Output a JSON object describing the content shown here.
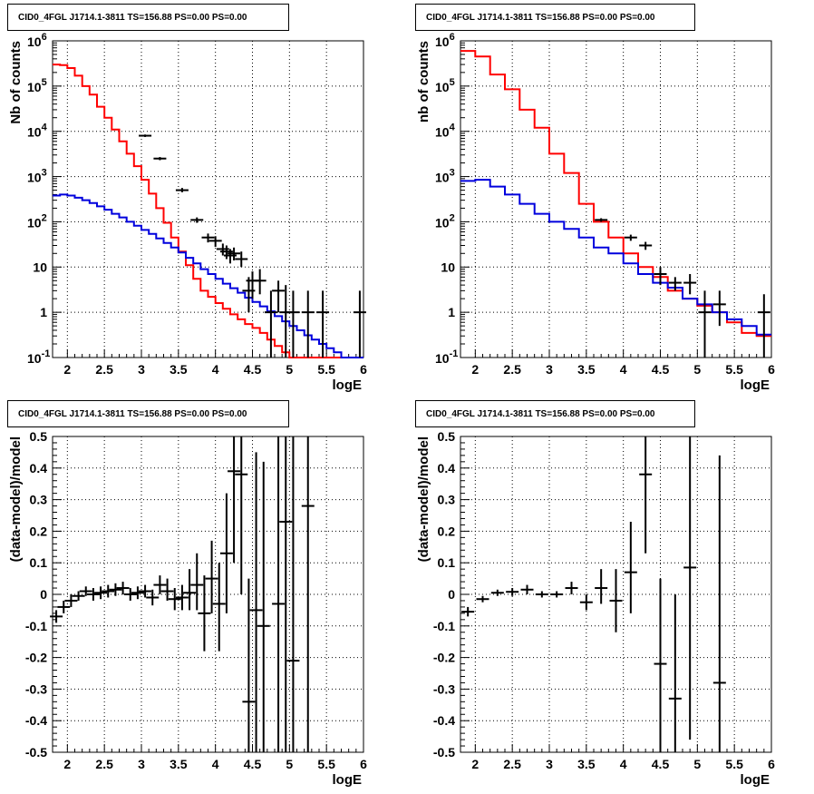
{
  "chart_data": [
    {
      "type": "line",
      "title": "CID0_4FGL J1714.1-3811 TS=156.88 PS=0.00 PS=0.00",
      "xlabel": "logE",
      "ylabel": "Nb of counts",
      "xlim": [
        1.8,
        6.0
      ],
      "ylim": [
        0.1,
        1000000
      ],
      "yscale": "log",
      "grid": true,
      "x_ticks": [
        "2",
        "2.5",
        "3",
        "3.5",
        "4",
        "4.5",
        "5",
        "5.5",
        "6"
      ],
      "y_ticks": [
        "10^-1",
        "1",
        "10",
        "10^2",
        "10^3",
        "10^4",
        "10^5",
        "10^6"
      ],
      "series": [
        {
          "color": "#ff0000",
          "style": "step",
          "bin_edges": [
            1.8,
            1.9,
            2.0,
            2.1,
            2.2,
            2.3,
            2.4,
            2.5,
            2.6,
            2.7,
            2.8,
            2.9,
            3.0,
            3.1,
            3.2,
            3.3,
            3.4,
            3.5,
            3.6,
            3.7,
            3.8,
            3.9,
            4.0,
            4.1,
            4.2,
            4.3,
            4.4,
            4.5,
            4.6,
            4.7,
            4.8,
            4.9,
            5.0,
            5.1,
            5.2,
            5.3,
            5.4,
            5.5,
            5.6,
            5.7,
            5.8,
            5.9,
            6.0
          ],
          "values": [
            300000,
            290000,
            250000,
            170000,
            100000,
            65000,
            35000,
            20000,
            11000,
            6000,
            3200,
            1700,
            850,
            420,
            200,
            95,
            45,
            22,
            11,
            5.5,
            3,
            2.2,
            1.6,
            1.2,
            0.9,
            0.7,
            0.55,
            0.45,
            0.35,
            0.25,
            0.18,
            0.13,
            0.1,
            0.08,
            0.065,
            0.055,
            0.045,
            0.035,
            0.028,
            0.022,
            0.018,
            0.014
          ]
        },
        {
          "color": "#0000dd",
          "style": "step",
          "bin_edges": [
            1.8,
            1.9,
            2.0,
            2.1,
            2.2,
            2.3,
            2.4,
            2.5,
            2.6,
            2.7,
            2.8,
            2.9,
            3.0,
            3.1,
            3.2,
            3.3,
            3.4,
            3.5,
            3.6,
            3.7,
            3.8,
            3.9,
            4.0,
            4.1,
            4.2,
            4.3,
            4.4,
            4.5,
            4.6,
            4.7,
            4.8,
            4.9,
            5.0,
            5.1,
            5.2,
            5.3,
            5.4,
            5.5,
            5.6,
            5.7,
            5.8,
            5.9,
            6.0
          ],
          "values": [
            380,
            400,
            380,
            340,
            300,
            260,
            220,
            185,
            150,
            125,
            100,
            82,
            66,
            54,
            43,
            34,
            27,
            21,
            16,
            12,
            9,
            7,
            5.5,
            4.3,
            3.4,
            2.7,
            2.1,
            1.7,
            1.35,
            1.05,
            0.82,
            0.63,
            0.5,
            0.4,
            0.31,
            0.25,
            0.2,
            0.16,
            0.13,
            0.1,
            0.08,
            0.065
          ]
        }
      ],
      "points": [
        {
          "x": 3.05,
          "y": 8000,
          "ylo": 7500,
          "yhi": 8500
        },
        {
          "x": 3.25,
          "y": 2500,
          "ylo": 2300,
          "yhi": 2700
        },
        {
          "x": 3.55,
          "y": 500,
          "ylo": 450,
          "yhi": 560
        },
        {
          "x": 3.75,
          "y": 110,
          "ylo": 95,
          "yhi": 125
        },
        {
          "x": 3.9,
          "y": 45,
          "ylo": 35,
          "yhi": 55
        },
        {
          "x": 4.0,
          "y": 38,
          "ylo": 28,
          "yhi": 48
        },
        {
          "x": 4.1,
          "y": 25,
          "ylo": 18,
          "yhi": 33
        },
        {
          "x": 4.15,
          "y": 22,
          "ylo": 15,
          "yhi": 30
        },
        {
          "x": 4.2,
          "y": 18,
          "ylo": 12,
          "yhi": 25
        },
        {
          "x": 4.25,
          "y": 20,
          "ylo": 14,
          "yhi": 27
        },
        {
          "x": 4.35,
          "y": 15,
          "ylo": 10,
          "yhi": 22
        },
        {
          "x": 4.45,
          "y": 3,
          "ylo": 1,
          "yhi": 6
        },
        {
          "x": 4.5,
          "y": 5,
          "ylo": 2,
          "yhi": 8
        },
        {
          "x": 4.6,
          "y": 5,
          "ylo": 2.5,
          "yhi": 9
        },
        {
          "x": 4.75,
          "y": 1,
          "ylo": 0.1,
          "yhi": 3
        },
        {
          "x": 4.85,
          "y": 3,
          "ylo": 1,
          "yhi": 5
        },
        {
          "x": 4.95,
          "y": 1,
          "ylo": 0.1,
          "yhi": 4
        },
        {
          "x": 5.05,
          "y": 1,
          "ylo": 0.1,
          "yhi": 3
        },
        {
          "x": 5.25,
          "y": 1,
          "ylo": 0.1,
          "yhi": 3
        },
        {
          "x": 5.45,
          "y": 1,
          "ylo": 0.1,
          "yhi": 3
        },
        {
          "x": 5.95,
          "y": 1,
          "ylo": 0.1,
          "yhi": 3
        }
      ]
    },
    {
      "type": "line",
      "title": "CID0_4FGL J1714.1-3811 TS=156.88 PS=0.00 PS=0.00",
      "xlabel": "logE",
      "ylabel": "nb of counts",
      "xlim": [
        1.8,
        6.0
      ],
      "ylim": [
        0.1,
        1000000
      ],
      "yscale": "log",
      "grid": true,
      "x_ticks": [
        "2",
        "2.5",
        "3",
        "3.5",
        "4",
        "4.5",
        "5",
        "5.5",
        "6"
      ],
      "y_ticks": [
        "10^-1",
        "1",
        "10",
        "10^2",
        "10^3",
        "10^4",
        "10^5",
        "10^6"
      ],
      "series": [
        {
          "color": "#ff0000",
          "style": "step",
          "bin_edges": [
            1.8,
            2.0,
            2.2,
            2.4,
            2.6,
            2.8,
            3.0,
            3.2,
            3.4,
            3.6,
            3.8,
            4.0,
            4.2,
            4.4,
            4.6,
            4.8,
            5.0,
            5.2,
            5.4,
            5.6,
            5.8,
            6.0
          ],
          "values": [
            600000,
            450000,
            180000,
            85000,
            30000,
            12000,
            3200,
            1200,
            250,
            100,
            45,
            20,
            10,
            6,
            3,
            2,
            1.4,
            1,
            0.6,
            0.35,
            0.3
          ]
        },
        {
          "color": "#0000dd",
          "style": "step",
          "bin_edges": [
            1.8,
            2.0,
            2.2,
            2.4,
            2.6,
            2.8,
            3.0,
            3.2,
            3.4,
            3.6,
            3.8,
            4.0,
            4.2,
            4.4,
            4.6,
            4.8,
            5.0,
            5.2,
            5.4,
            5.6,
            5.8,
            6.0
          ],
          "values": [
            800,
            850,
            600,
            400,
            250,
            150,
            100,
            70,
            45,
            27,
            20,
            12,
            7,
            4.5,
            3.5,
            2,
            1.5,
            1,
            0.7,
            0.5,
            0.32
          ]
        }
      ],
      "points": [
        {
          "x": 3.7,
          "y": 110,
          "ylo": 100,
          "yhi": 120
        },
        {
          "x": 4.1,
          "y": 45,
          "ylo": 38,
          "yhi": 52
        },
        {
          "x": 4.3,
          "y": 30,
          "ylo": 24,
          "yhi": 36
        },
        {
          "x": 4.5,
          "y": 7,
          "ylo": 4,
          "yhi": 10
        },
        {
          "x": 4.7,
          "y": 4.5,
          "ylo": 3,
          "yhi": 6
        },
        {
          "x": 4.9,
          "y": 4.5,
          "ylo": 2.5,
          "yhi": 7
        },
        {
          "x": 5.1,
          "y": 1,
          "ylo": 0.1,
          "yhi": 3
        },
        {
          "x": 5.3,
          "y": 1.5,
          "ylo": 0.5,
          "yhi": 3
        },
        {
          "x": 5.9,
          "y": 1,
          "ylo": 0.1,
          "yhi": 2.5
        }
      ]
    },
    {
      "type": "scatter",
      "title": "CID0_4FGL J1714.1-3811 TS=156.88 PS=0.00 PS=0.00",
      "xlabel": "logE",
      "ylabel": "(data-model)/model",
      "xlim": [
        1.8,
        6.0
      ],
      "ylim": [
        -0.5,
        0.5
      ],
      "grid": true,
      "x_ticks": [
        "2",
        "2.5",
        "3",
        "3.5",
        "4",
        "4.5",
        "5",
        "5.5",
        "6"
      ],
      "y_ticks": [
        "-0.5",
        "-0.4",
        "-0.3",
        "-0.2",
        "-0.1",
        "0",
        "0.1",
        "0.2",
        "0.3",
        "0.4",
        "0.5"
      ],
      "points": [
        {
          "x": 1.85,
          "y": -0.07,
          "ylo": -0.09,
          "yhi": -0.05
        },
        {
          "x": 1.95,
          "y": -0.04,
          "ylo": -0.06,
          "yhi": -0.02
        },
        {
          "x": 2.05,
          "y": -0.02,
          "ylo": -0.04,
          "yhi": 0.0
        },
        {
          "x": 2.15,
          "y": -0.005,
          "ylo": -0.02,
          "yhi": 0.01
        },
        {
          "x": 2.25,
          "y": 0.01,
          "ylo": -0.005,
          "yhi": 0.025
        },
        {
          "x": 2.35,
          "y": 0.0,
          "ylo": -0.02,
          "yhi": 0.02
        },
        {
          "x": 2.45,
          "y": 0.005,
          "ylo": -0.015,
          "yhi": 0.025
        },
        {
          "x": 2.55,
          "y": 0.01,
          "ylo": -0.01,
          "yhi": 0.03
        },
        {
          "x": 2.65,
          "y": 0.015,
          "ylo": -0.005,
          "yhi": 0.035
        },
        {
          "x": 2.75,
          "y": 0.02,
          "ylo": 0.0,
          "yhi": 0.04
        },
        {
          "x": 2.85,
          "y": 0.0,
          "ylo": -0.02,
          "yhi": 0.02
        },
        {
          "x": 2.95,
          "y": 0.005,
          "ylo": -0.015,
          "yhi": 0.025
        },
        {
          "x": 3.05,
          "y": 0.01,
          "ylo": -0.01,
          "yhi": 0.03
        },
        {
          "x": 3.15,
          "y": -0.01,
          "ylo": -0.035,
          "yhi": 0.015
        },
        {
          "x": 3.25,
          "y": 0.03,
          "ylo": 0.0,
          "yhi": 0.06
        },
        {
          "x": 3.35,
          "y": 0.01,
          "ylo": -0.02,
          "yhi": 0.05
        },
        {
          "x": 3.45,
          "y": -0.015,
          "ylo": -0.05,
          "yhi": 0.02
        },
        {
          "x": 3.55,
          "y": -0.01,
          "ylo": -0.05,
          "yhi": 0.03
        },
        {
          "x": 3.65,
          "y": 0.005,
          "ylo": -0.05,
          "yhi": 0.08
        },
        {
          "x": 3.75,
          "y": 0.03,
          "ylo": -0.05,
          "yhi": 0.13
        },
        {
          "x": 3.85,
          "y": -0.06,
          "ylo": -0.18,
          "yhi": 0.06
        },
        {
          "x": 3.95,
          "y": 0.05,
          "ylo": -0.06,
          "yhi": 0.17
        },
        {
          "x": 4.05,
          "y": -0.03,
          "ylo": -0.18,
          "yhi": 0.1
        },
        {
          "x": 4.15,
          "y": 0.13,
          "ylo": -0.06,
          "yhi": 0.32
        },
        {
          "x": 4.25,
          "y": 0.39,
          "ylo": 0.1,
          "yhi": 0.5
        },
        {
          "x": 4.35,
          "y": 0.38,
          "ylo": 0.0,
          "yhi": 0.5
        },
        {
          "x": 4.45,
          "y": -0.34,
          "ylo": -0.5,
          "yhi": 0.05
        },
        {
          "x": 4.55,
          "y": -0.05,
          "ylo": -0.5,
          "yhi": 0.45
        },
        {
          "x": 4.65,
          "y": -0.1,
          "ylo": -0.5,
          "yhi": 0.42
        },
        {
          "x": 4.85,
          "y": -0.03,
          "ylo": -0.5,
          "yhi": 0.5
        },
        {
          "x": 4.95,
          "y": 0.23,
          "ylo": -0.5,
          "yhi": 0.5
        },
        {
          "x": 5.05,
          "y": -0.21,
          "ylo": -0.5,
          "yhi": 0.5
        },
        {
          "x": 5.25,
          "y": 0.28,
          "ylo": -0.5,
          "yhi": 0.5
        }
      ]
    },
    {
      "type": "scatter",
      "title": "CID0_4FGL J1714.1-3811 TS=156.88 PS=0.00 PS=0.00",
      "xlabel": "logE",
      "ylabel": "(data-model)/model",
      "xlim": [
        1.8,
        6.0
      ],
      "ylim": [
        -0.5,
        0.5
      ],
      "grid": true,
      "x_ticks": [
        "2",
        "2.5",
        "3",
        "3.5",
        "4",
        "4.5",
        "5",
        "5.5",
        "6"
      ],
      "y_ticks": [
        "-0.5",
        "-0.4",
        "-0.3",
        "-0.2",
        "-0.1",
        "0",
        "0.1",
        "0.2",
        "0.3",
        "0.4",
        "0.5"
      ],
      "points": [
        {
          "x": 1.9,
          "y": -0.055,
          "ylo": -0.07,
          "yhi": -0.04
        },
        {
          "x": 2.1,
          "y": -0.015,
          "ylo": -0.025,
          "yhi": -0.005
        },
        {
          "x": 2.3,
          "y": 0.005,
          "ylo": -0.005,
          "yhi": 0.015
        },
        {
          "x": 2.5,
          "y": 0.008,
          "ylo": -0.005,
          "yhi": 0.02
        },
        {
          "x": 2.7,
          "y": 0.015,
          "ylo": 0.0,
          "yhi": 0.03
        },
        {
          "x": 2.9,
          "y": 0.0,
          "ylo": -0.01,
          "yhi": 0.01
        },
        {
          "x": 3.1,
          "y": 0.0,
          "ylo": -0.01,
          "yhi": 0.01
        },
        {
          "x": 3.3,
          "y": 0.02,
          "ylo": 0.0,
          "yhi": 0.04
        },
        {
          "x": 3.5,
          "y": -0.025,
          "ylo": -0.05,
          "yhi": 0.0
        },
        {
          "x": 3.7,
          "y": 0.02,
          "ylo": -0.03,
          "yhi": 0.08
        },
        {
          "x": 3.9,
          "y": -0.02,
          "ylo": -0.12,
          "yhi": 0.08
        },
        {
          "x": 4.1,
          "y": 0.07,
          "ylo": -0.06,
          "yhi": 0.23
        },
        {
          "x": 4.3,
          "y": 0.38,
          "ylo": 0.13,
          "yhi": 0.5
        },
        {
          "x": 4.5,
          "y": -0.22,
          "ylo": -0.5,
          "yhi": 0.05
        },
        {
          "x": 4.7,
          "y": -0.33,
          "ylo": -0.5,
          "yhi": 0.0
        },
        {
          "x": 4.9,
          "y": 0.085,
          "ylo": -0.46,
          "yhi": 0.5
        },
        {
          "x": 5.3,
          "y": -0.28,
          "ylo": -0.5,
          "yhi": 0.44
        }
      ]
    }
  ]
}
